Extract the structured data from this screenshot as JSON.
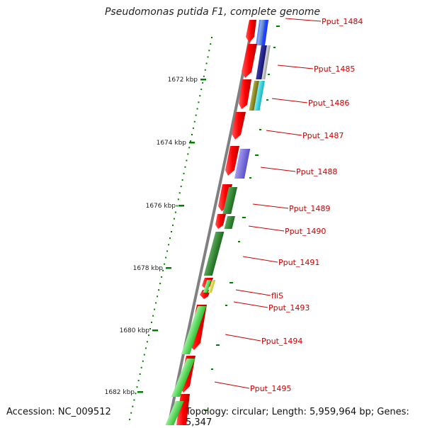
{
  "title": "Pseudomonas putida F1, complete genome",
  "footer": {
    "accession": "Accession: NC_009512",
    "topology": "Topology: circular; Length: 5,959,964 bp; Genes: 5,347"
  },
  "ticks": [
    {
      "label": "1672 kbp"
    },
    {
      "label": "1674 kbp"
    },
    {
      "label": "1676 kbp"
    },
    {
      "label": "1678 kbp"
    },
    {
      "label": "1680 kbp"
    },
    {
      "label": "1682 kbp"
    }
  ],
  "genes": [
    {
      "label": "Pput_1484"
    },
    {
      "label": "Pput_1485"
    },
    {
      "label": "Pput_1486"
    },
    {
      "label": "Pput_1487"
    },
    {
      "label": "Pput_1488"
    },
    {
      "label": "Pput_1489"
    },
    {
      "label": "Pput_1490"
    },
    {
      "label": "Pput_1491"
    },
    {
      "label": "fliS"
    },
    {
      "label": "Pput_1493"
    },
    {
      "label": "Pput_1494"
    },
    {
      "label": "Pput_1495"
    }
  ],
  "colors": {
    "cds": "#ff0000",
    "backbone": "#888888",
    "tick": "#008000",
    "label": "#cc0000"
  }
}
